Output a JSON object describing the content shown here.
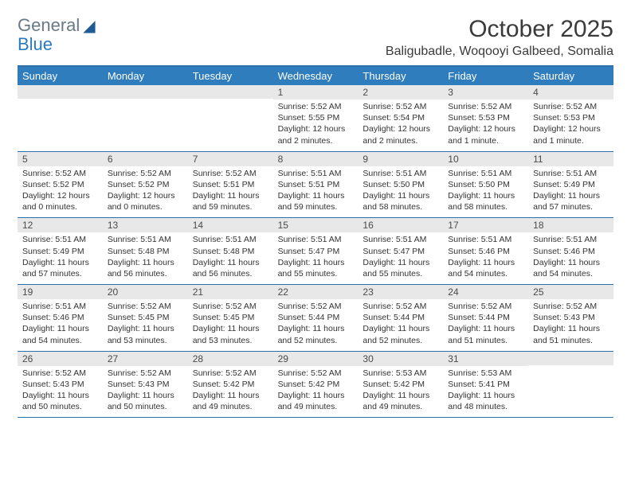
{
  "logo": {
    "line1": "General",
    "line2": "Blue"
  },
  "title": "October 2025",
  "location": "Baligubadle, Woqooyi Galbeed, Somalia",
  "colors": {
    "header_bg": "#2f7dbd",
    "border": "#2f6fa8",
    "daynum_bg": "#e8e8e8",
    "text": "#333333",
    "logo_gray": "#6a7a84",
    "logo_blue": "#2a7ac0"
  },
  "dow": [
    "Sunday",
    "Monday",
    "Tuesday",
    "Wednesday",
    "Thursday",
    "Friday",
    "Saturday"
  ],
  "weeks": [
    [
      {
        "n": "",
        "sr": "",
        "ss": "",
        "dl": ""
      },
      {
        "n": "",
        "sr": "",
        "ss": "",
        "dl": ""
      },
      {
        "n": "",
        "sr": "",
        "ss": "",
        "dl": ""
      },
      {
        "n": "1",
        "sr": "5:52 AM",
        "ss": "5:55 PM",
        "dl": "12 hours and 2 minutes."
      },
      {
        "n": "2",
        "sr": "5:52 AM",
        "ss": "5:54 PM",
        "dl": "12 hours and 2 minutes."
      },
      {
        "n": "3",
        "sr": "5:52 AM",
        "ss": "5:53 PM",
        "dl": "12 hours and 1 minute."
      },
      {
        "n": "4",
        "sr": "5:52 AM",
        "ss": "5:53 PM",
        "dl": "12 hours and 1 minute."
      }
    ],
    [
      {
        "n": "5",
        "sr": "5:52 AM",
        "ss": "5:52 PM",
        "dl": "12 hours and 0 minutes."
      },
      {
        "n": "6",
        "sr": "5:52 AM",
        "ss": "5:52 PM",
        "dl": "12 hours and 0 minutes."
      },
      {
        "n": "7",
        "sr": "5:52 AM",
        "ss": "5:51 PM",
        "dl": "11 hours and 59 minutes."
      },
      {
        "n": "8",
        "sr": "5:51 AM",
        "ss": "5:51 PM",
        "dl": "11 hours and 59 minutes."
      },
      {
        "n": "9",
        "sr": "5:51 AM",
        "ss": "5:50 PM",
        "dl": "11 hours and 58 minutes."
      },
      {
        "n": "10",
        "sr": "5:51 AM",
        "ss": "5:50 PM",
        "dl": "11 hours and 58 minutes."
      },
      {
        "n": "11",
        "sr": "5:51 AM",
        "ss": "5:49 PM",
        "dl": "11 hours and 57 minutes."
      }
    ],
    [
      {
        "n": "12",
        "sr": "5:51 AM",
        "ss": "5:49 PM",
        "dl": "11 hours and 57 minutes."
      },
      {
        "n": "13",
        "sr": "5:51 AM",
        "ss": "5:48 PM",
        "dl": "11 hours and 56 minutes."
      },
      {
        "n": "14",
        "sr": "5:51 AM",
        "ss": "5:48 PM",
        "dl": "11 hours and 56 minutes."
      },
      {
        "n": "15",
        "sr": "5:51 AM",
        "ss": "5:47 PM",
        "dl": "11 hours and 55 minutes."
      },
      {
        "n": "16",
        "sr": "5:51 AM",
        "ss": "5:47 PM",
        "dl": "11 hours and 55 minutes."
      },
      {
        "n": "17",
        "sr": "5:51 AM",
        "ss": "5:46 PM",
        "dl": "11 hours and 54 minutes."
      },
      {
        "n": "18",
        "sr": "5:51 AM",
        "ss": "5:46 PM",
        "dl": "11 hours and 54 minutes."
      }
    ],
    [
      {
        "n": "19",
        "sr": "5:51 AM",
        "ss": "5:46 PM",
        "dl": "11 hours and 54 minutes."
      },
      {
        "n": "20",
        "sr": "5:52 AM",
        "ss": "5:45 PM",
        "dl": "11 hours and 53 minutes."
      },
      {
        "n": "21",
        "sr": "5:52 AM",
        "ss": "5:45 PM",
        "dl": "11 hours and 53 minutes."
      },
      {
        "n": "22",
        "sr": "5:52 AM",
        "ss": "5:44 PM",
        "dl": "11 hours and 52 minutes."
      },
      {
        "n": "23",
        "sr": "5:52 AM",
        "ss": "5:44 PM",
        "dl": "11 hours and 52 minutes."
      },
      {
        "n": "24",
        "sr": "5:52 AM",
        "ss": "5:44 PM",
        "dl": "11 hours and 51 minutes."
      },
      {
        "n": "25",
        "sr": "5:52 AM",
        "ss": "5:43 PM",
        "dl": "11 hours and 51 minutes."
      }
    ],
    [
      {
        "n": "26",
        "sr": "5:52 AM",
        "ss": "5:43 PM",
        "dl": "11 hours and 50 minutes."
      },
      {
        "n": "27",
        "sr": "5:52 AM",
        "ss": "5:43 PM",
        "dl": "11 hours and 50 minutes."
      },
      {
        "n": "28",
        "sr": "5:52 AM",
        "ss": "5:42 PM",
        "dl": "11 hours and 49 minutes."
      },
      {
        "n": "29",
        "sr": "5:52 AM",
        "ss": "5:42 PM",
        "dl": "11 hours and 49 minutes."
      },
      {
        "n": "30",
        "sr": "5:53 AM",
        "ss": "5:42 PM",
        "dl": "11 hours and 49 minutes."
      },
      {
        "n": "31",
        "sr": "5:53 AM",
        "ss": "5:41 PM",
        "dl": "11 hours and 48 minutes."
      },
      {
        "n": "",
        "sr": "",
        "ss": "",
        "dl": ""
      }
    ]
  ],
  "labels": {
    "sunrise": "Sunrise:",
    "sunset": "Sunset:",
    "daylight": "Daylight:"
  }
}
